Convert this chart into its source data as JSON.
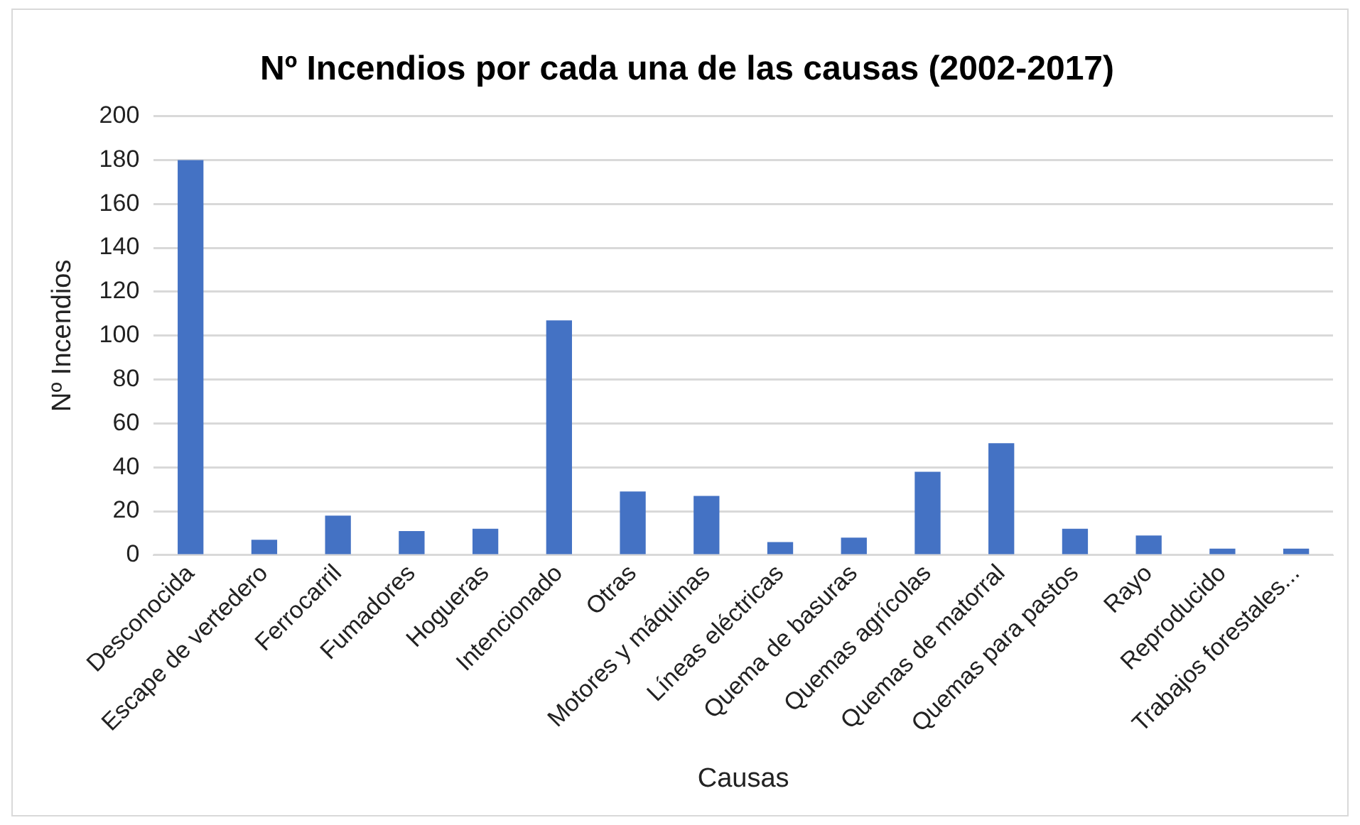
{
  "chart_data": {
    "type": "bar",
    "title": "Nº Incendios por cada una de las causas (2002-2017)",
    "xlabel": "Causas",
    "ylabel": "Nº Incendios",
    "categories": [
      "Desconocida",
      "Escape de vertedero",
      "Ferrocarril",
      "Fumadores",
      "Hogueras",
      "Intencionado",
      "Otras",
      "Motores y máquinas",
      "Líneas eléctricas",
      "Quema de basuras",
      "Quemas agrícolas",
      "Quemas de matorral",
      "Quemas para pastos",
      "Rayo",
      "Reproducido",
      "Trabajos forestales..."
    ],
    "values": [
      180,
      7,
      18,
      11,
      12,
      107,
      29,
      27,
      6,
      8,
      38,
      51,
      12,
      9,
      3,
      3
    ],
    "color": "#4472c4",
    "ylim": [
      0,
      200
    ],
    "yticks": [
      0,
      20,
      40,
      60,
      80,
      100,
      120,
      140,
      160,
      180,
      200
    ],
    "grid": "y",
    "legend": false
  }
}
